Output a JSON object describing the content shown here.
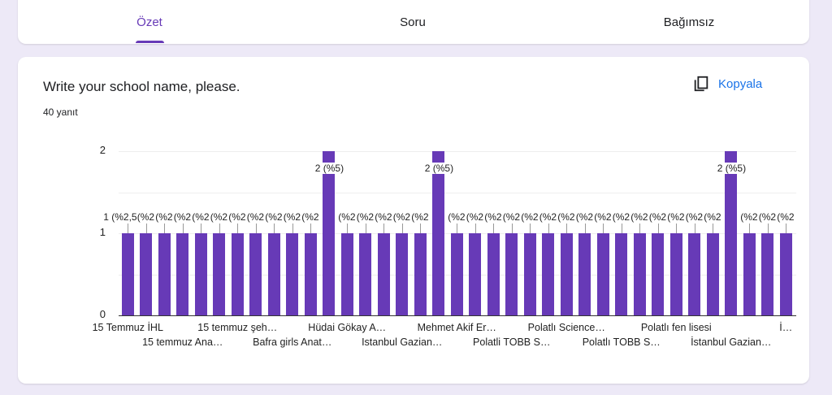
{
  "tabs": [
    {
      "label": "Özet",
      "active": true
    },
    {
      "label": "Soru"
    },
    {
      "label": "Bağımsız"
    }
  ],
  "question": {
    "title": "Write your school name, please.",
    "response_count": "40 yanıt",
    "copy_label": "Kopyala",
    "copy_icon": "copy-icon"
  },
  "colors": {
    "accent": "#673ab7",
    "link": "#1a73e8",
    "background": "#ede9f7"
  },
  "chart_data": {
    "type": "bar",
    "ylim": [
      0,
      2
    ],
    "yticks": [
      "0",
      "1",
      "2"
    ],
    "grid": true,
    "values": [
      1,
      1,
      1,
      1,
      1,
      1,
      1,
      1,
      1,
      1,
      1,
      2,
      1,
      1,
      1,
      1,
      1,
      2,
      1,
      1,
      1,
      1,
      1,
      1,
      1,
      1,
      1,
      1,
      1,
      1,
      1,
      1,
      1,
      2,
      1,
      1,
      1
    ],
    "data_labels": [
      "1 (%2,5)",
      "(%2,5)",
      "(%2,5)",
      "(%2,5)",
      "(%2,5)",
      "(%2,5)",
      "(%2,5)",
      "(%2,5)",
      "(%2,5)",
      "(%2,5)",
      "(%2,5)",
      "2 (%5)",
      "(%2,5)",
      "(%2,5)",
      "(%2,5)",
      "(%2,5)",
      "(%2,5)",
      "2 (%5)",
      "(%2,5)",
      "(%2,5)",
      "(%2,5)",
      "(%2,5)",
      "(%2,5)",
      "(%2,5)",
      "(%2,5)",
      "(%2,5)",
      "(%2,5)",
      "(%2,5)",
      "(%2,5)",
      "(%2,5)",
      "(%2,5)",
      "(%2,5)",
      "(%2,5)",
      "2 (%5)",
      "(%2,5)",
      "(%2,5)",
      "(%2"
    ],
    "categories": [
      "15 Temmuz İHL",
      "",
      "",
      "15 temmuz Ana…",
      "",
      "",
      "15 temmuz şeh…",
      "",
      "",
      "Bafra girls Anat…",
      "",
      "",
      "Hüdai Gökay A…",
      "",
      "",
      "Istanbul Gazian…",
      "",
      "",
      "Mehmet Akif Er…",
      "",
      "",
      "Polatli TOBB S…",
      "",
      "",
      "Polatlı Science…",
      "",
      "",
      "Polatlı TOBB S…",
      "",
      "",
      "Polatlı fen lisesi",
      "",
      "",
      "İstanbul Gazian…",
      "",
      "",
      "İ…"
    ]
  }
}
